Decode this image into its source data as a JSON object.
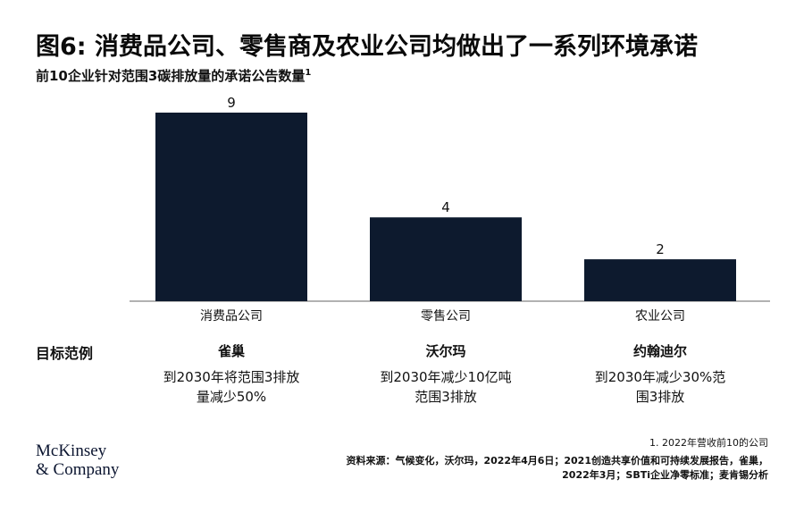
{
  "header": {
    "title": "图6: 消费品公司、零售商及农业公司均做出了一系列环境承诺",
    "subtitle": "前10企业针对范围3碳排放量的承诺公告数量",
    "subtitle_sup": "1"
  },
  "chart_data": {
    "type": "bar",
    "categories": [
      "消费品公司",
      "零售公司",
      "农业公司"
    ],
    "values": [
      9,
      4,
      2
    ],
    "data_labels": [
      "9",
      "4",
      "2"
    ],
    "ylim": [
      0,
      9
    ],
    "bar_color": "#0d1a2e",
    "grid": false
  },
  "examples": {
    "row_label": "目标范例",
    "items": [
      {
        "name": "雀巢",
        "desc_line1": "到2030年将范围3排放",
        "desc_line2": "量减少50%"
      },
      {
        "name": "沃尔玛",
        "desc_line1": "到2030年减少10亿吨",
        "desc_line2": "范围3排放"
      },
      {
        "name": "约翰迪尔",
        "desc_line1": "到2030年减少30%范",
        "desc_line2": "围3排放"
      }
    ]
  },
  "footer": {
    "note": "1.  2022年营收前10的公司",
    "source_line1": "资料来源：气候变化，沃尔玛，2022年4月6日；2021创造共享价值和可持续发展报告，雀巢，",
    "source_line2": "2022年3月；SBTi企业净零标准；麦肯锡分析",
    "logo_line1": "McKinsey",
    "logo_line2": "& Company"
  }
}
